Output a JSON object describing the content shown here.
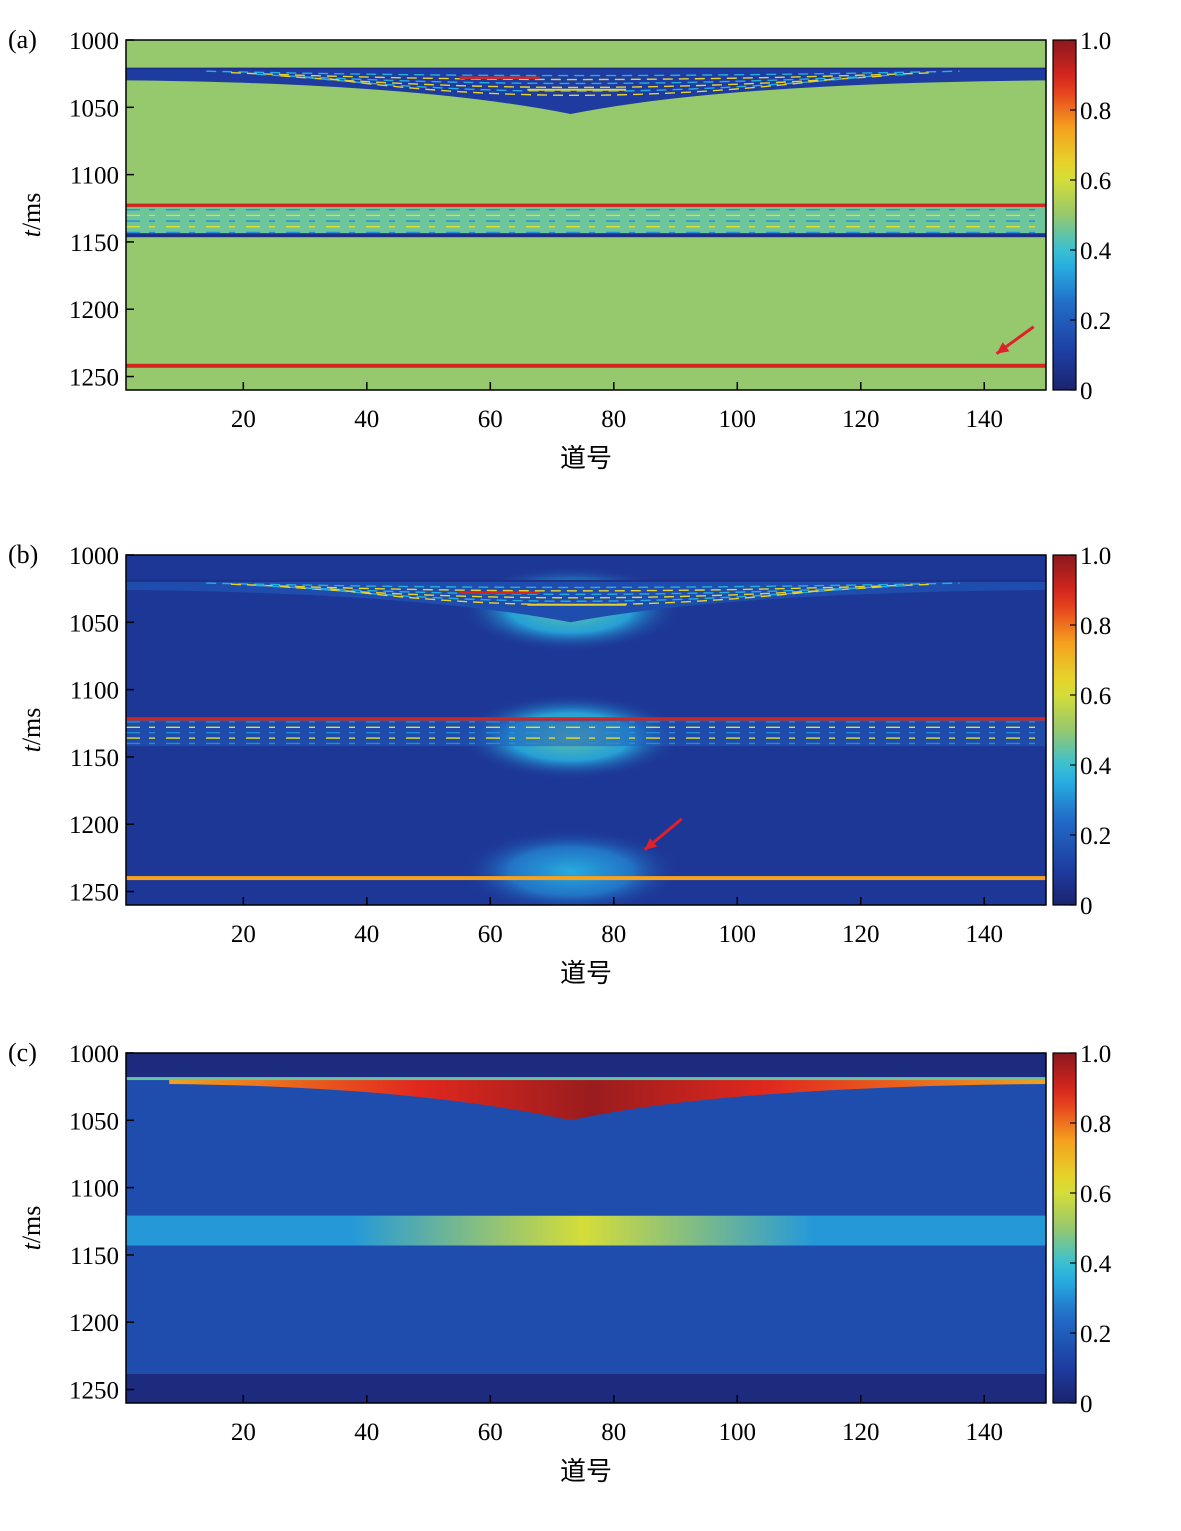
{
  "chart_data": [
    {
      "panel": "(a)",
      "type": "heatmap",
      "xlabel": "道号",
      "ylabel": "t/ms",
      "xlim": [
        1,
        150
      ],
      "ylim": [
        1000,
        1260
      ],
      "y_inverted": true,
      "xticks": [
        20,
        40,
        60,
        80,
        100,
        120,
        140
      ],
      "yticks": [
        1000,
        1050,
        1100,
        1150,
        1200,
        1250
      ],
      "colorbar": {
        "ticks": [
          "0",
          "0.2",
          "0.4",
          "0.6",
          "0.8",
          "1.0"
        ],
        "range": [
          0,
          1
        ],
        "colormap": "jet"
      },
      "background_value": 0.5,
      "features": [
        {
          "kind": "horizontal-line",
          "t": 1022,
          "value": 0.05
        },
        {
          "kind": "wedge",
          "t_top": 1022,
          "t_bottom_edge": 1030,
          "t_bottom_center": 1055,
          "x_center": 73,
          "value": 0.1,
          "note_values": [
            0.3,
            0.7,
            0.9
          ]
        },
        {
          "kind": "horizontal-line",
          "t": 1123,
          "value": 0.9
        },
        {
          "kind": "band",
          "t_top": 1124,
          "t_bottom": 1145,
          "value": 0.45
        },
        {
          "kind": "horizontal-line",
          "t": 1145,
          "value": 0.05
        },
        {
          "kind": "horizontal-line",
          "t": 1242,
          "value": 0.9
        }
      ],
      "arrow": {
        "from": [
          148,
          1213
        ],
        "to": [
          142,
          1233
        ]
      }
    },
    {
      "panel": "(b)",
      "type": "heatmap",
      "xlabel": "道号",
      "ylabel": "t/ms",
      "xlim": [
        1,
        150
      ],
      "ylim": [
        1000,
        1260
      ],
      "y_inverted": true,
      "xticks": [
        20,
        40,
        60,
        80,
        100,
        120,
        140
      ],
      "yticks": [
        1000,
        1050,
        1100,
        1150,
        1200,
        1250
      ],
      "colorbar": {
        "ticks": [
          "0",
          "0.2",
          "0.4",
          "0.6",
          "0.8",
          "1.0"
        ],
        "range": [
          0,
          1
        ],
        "colormap": "jet"
      },
      "background_value": 0.08,
      "features": [
        {
          "kind": "halo",
          "t_center": 1040,
          "x_center": 73,
          "value": 0.45
        },
        {
          "kind": "horizontal-line",
          "t": 1020,
          "value": 0.05
        },
        {
          "kind": "wedge",
          "t_top": 1020,
          "t_bottom_center": 1050,
          "x_center": 73,
          "value": 0.15
        },
        {
          "kind": "halo",
          "t_center": 1135,
          "x_center": 73,
          "value": 0.45
        },
        {
          "kind": "horizontal-line",
          "t": 1122,
          "value": 0.9
        },
        {
          "kind": "band",
          "t_top": 1122,
          "t_bottom": 1142,
          "value": 0.2
        },
        {
          "kind": "halo",
          "t_center": 1235,
          "x_center": 73,
          "value": 0.35
        },
        {
          "kind": "horizontal-line",
          "t": 1240,
          "value": 0.75
        }
      ],
      "arrow": {
        "from": [
          91,
          1196
        ],
        "to": [
          85,
          1219
        ]
      }
    },
    {
      "panel": "(c)",
      "type": "heatmap",
      "xlabel": "道号",
      "ylabel": "t/ms",
      "xlim": [
        1,
        150
      ],
      "ylim": [
        1000,
        1260
      ],
      "y_inverted": true,
      "xticks": [
        20,
        40,
        60,
        80,
        100,
        120,
        140
      ],
      "yticks": [
        1000,
        1050,
        1100,
        1150,
        1200,
        1250
      ],
      "colorbar": {
        "ticks": [
          "0",
          "0.2",
          "0.4",
          "0.6",
          "0.8",
          "1.0"
        ],
        "range": [
          0,
          1
        ],
        "colormap": "jet"
      },
      "layers": [
        {
          "t_top": 1000,
          "t_bottom": 1019,
          "value": 0.03
        },
        {
          "t_top": 1019,
          "t_bottom": 1121,
          "value": 0.15
        },
        {
          "t_top": 1121,
          "t_bottom": 1143,
          "value_edge": 0.32,
          "value_center": 0.6,
          "x_center": 75
        },
        {
          "t_top": 1143,
          "t_bottom": 1238,
          "value": 0.15
        },
        {
          "t_top": 1238,
          "t_bottom": 1260,
          "value": 0.03
        }
      ],
      "wedge": {
        "t_top": 1019,
        "t_bottom_center": 1050,
        "x_center": 73,
        "value_edge": 0.75,
        "value_center": 0.98
      }
    }
  ]
}
